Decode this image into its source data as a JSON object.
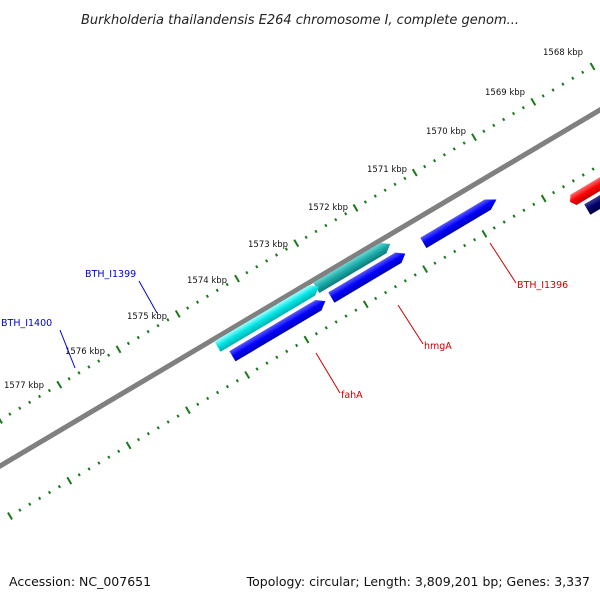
{
  "title": "Burkholderia thailandensis E264 chromosome I, complete genom...",
  "footer": {
    "accession": "Accession: NC_007651",
    "summary": "Topology: circular; Length: 3,809,201 bp; Genes: 3,337"
  },
  "ticks": [
    "1568 kbp",
    "1569 kbp",
    "1570 kbp",
    "1571 kbp",
    "1572 kbp",
    "1573 kbp",
    "1574 kbp",
    "1575 kbp",
    "1576 kbp",
    "1577 kbp"
  ],
  "gene_labels": {
    "bth_i1399": "BTH_I1399",
    "bth_i1400": "BTH_I1400",
    "bth_i1396": "BTH_I1396",
    "hmga": "hmgA",
    "faha": "fahA"
  },
  "colors": {
    "forward_gene": "#ff0000",
    "forward_gene_dark": "#000066",
    "blue_gene": "#0000ff",
    "cyan_gene": "#00e5e5",
    "teal_gene": "#1aaaa8",
    "backbone": "#808080",
    "tick": "#1a7a1a",
    "label_blue": "#0000cc",
    "label_red": "#cc0000"
  }
}
